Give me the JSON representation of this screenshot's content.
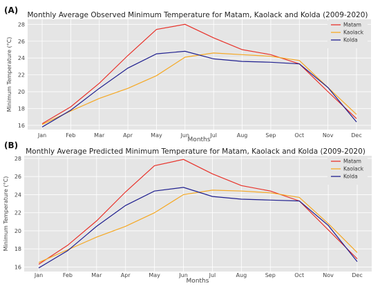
{
  "chart_data": [
    {
      "type": "line",
      "panel_label": "(A)",
      "title": "Monthly Average Observed Minimum Temperature for Matam, Kaolack and Kolda (2009-2020)",
      "xlabel": "Months",
      "ylabel": "Minimum Temperature (°C)",
      "categories": [
        "Jan",
        "Feb",
        "Mar",
        "Apr",
        "May",
        "Jun",
        "Jul",
        "Aug",
        "Sep",
        "Oct",
        "Nov",
        "Dec"
      ],
      "ylim": [
        15.5,
        28.6
      ],
      "yticks": [
        16,
        18,
        20,
        22,
        24,
        26,
        28
      ],
      "grid": true,
      "legend_position": "top-right",
      "series": [
        {
          "name": "Matam",
          "color": "#e8322a",
          "values": [
            16.2,
            18.2,
            21.0,
            24.3,
            27.4,
            28.0,
            26.4,
            25.0,
            24.4,
            23.3,
            20.0,
            16.8
          ]
        },
        {
          "name": "Kaolack",
          "color": "#f5a823",
          "values": [
            16.1,
            17.7,
            19.2,
            20.4,
            21.9,
            24.1,
            24.6,
            24.4,
            24.2,
            23.7,
            20.5,
            17.3
          ]
        },
        {
          "name": "Kolda",
          "color": "#1f1f8f",
          "values": [
            15.8,
            17.8,
            20.4,
            22.8,
            24.5,
            24.8,
            23.9,
            23.6,
            23.5,
            23.3,
            20.5,
            16.4
          ]
        }
      ]
    },
    {
      "type": "line",
      "panel_label": "(B)",
      "title": "Monthly Average Predicted Minimum Temperature for Matam, Kaolack and Kolda (2009-2020)",
      "xlabel": "Months",
      "ylabel": "Minimum Temperature (°C)",
      "categories": [
        "Jan",
        "Feb",
        "Mar",
        "Apr",
        "May",
        "Jun",
        "Jul",
        "Aug",
        "Sep",
        "Oct",
        "Nov",
        "Dec"
      ],
      "ylim": [
        15.5,
        28.3
      ],
      "yticks": [
        16,
        18,
        20,
        22,
        24,
        26,
        28
      ],
      "grid": true,
      "legend_position": "top-right",
      "series": [
        {
          "name": "Matam",
          "color": "#e8322a",
          "values": [
            16.3,
            18.4,
            21.1,
            24.3,
            27.2,
            27.9,
            26.3,
            25.0,
            24.4,
            23.3,
            20.1,
            16.9
          ]
        },
        {
          "name": "Kaolack",
          "color": "#f5a823",
          "values": [
            16.5,
            17.9,
            19.3,
            20.5,
            22.0,
            24.0,
            24.5,
            24.4,
            24.2,
            23.7,
            20.8,
            17.6
          ]
        },
        {
          "name": "Kolda",
          "color": "#1f1f8f",
          "values": [
            15.9,
            17.8,
            20.5,
            22.8,
            24.4,
            24.8,
            23.8,
            23.5,
            23.4,
            23.3,
            20.6,
            16.6
          ]
        }
      ]
    }
  ]
}
